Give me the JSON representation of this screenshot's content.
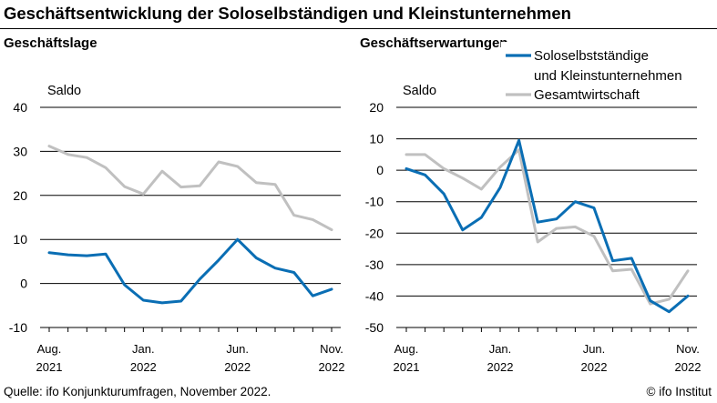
{
  "title": "Geschäftsentwicklung der Soloselbständigen und Kleinstunternehmen",
  "footer": {
    "source": "Quelle: ifo Konjunkturumfragen, November 2022.",
    "copyright": "© ifo Institut"
  },
  "colors": {
    "solo": "#0a6eb4",
    "gesamt": "#c0c0c0",
    "grid": "#000000"
  },
  "chart_data": [
    {
      "type": "line",
      "title": "Geschäftslage",
      "ylabel": "Saldo",
      "ylim": [
        -10,
        40
      ],
      "yticks": [
        -10,
        0,
        10,
        20,
        30,
        40
      ],
      "x": [
        "Aug. 2021",
        "Sep. 2021",
        "Okt. 2021",
        "Nov. 2021",
        "Dez. 2021",
        "Jan. 2022",
        "Feb. 2022",
        "Mär. 2022",
        "Apr. 2022",
        "Mai 2022",
        "Jun. 2022",
        "Jul. 2022",
        "Aug. 2022",
        "Sep. 2022",
        "Okt. 2022",
        "Nov. 2022"
      ],
      "xtick_labels": [
        {
          "index": 0,
          "line1": "Aug.",
          "line2": "2021"
        },
        {
          "index": 5,
          "line1": "Jan.",
          "line2": "2022"
        },
        {
          "index": 10,
          "line1": "Jun.",
          "line2": "2022"
        },
        {
          "index": 15,
          "line1": "Nov.",
          "line2": "2022"
        }
      ],
      "series": [
        {
          "key": "solo",
          "values": [
            7.0,
            6.5,
            6.3,
            6.7,
            -0.3,
            -3.8,
            -4.4,
            -4.0,
            1.0,
            5.3,
            10.0,
            5.8,
            3.5,
            2.5,
            -2.8,
            -1.3
          ]
        },
        {
          "key": "gesamt",
          "values": [
            31.2,
            29.3,
            28.6,
            26.3,
            22.0,
            20.3,
            25.5,
            21.9,
            22.2,
            27.6,
            26.6,
            22.9,
            22.5,
            15.5,
            14.5,
            12.2
          ]
        }
      ]
    },
    {
      "type": "line",
      "title": "Geschäftserwartungen",
      "ylabel": "Saldo",
      "ylim": [
        -50,
        20
      ],
      "yticks": [
        -50,
        -40,
        -30,
        -20,
        -10,
        0,
        10,
        20
      ],
      "x": [
        "Aug. 2021",
        "Sep. 2021",
        "Okt. 2021",
        "Nov. 2021",
        "Dez. 2021",
        "Jan. 2022",
        "Feb. 2022",
        "Mär. 2022",
        "Apr. 2022",
        "Mai 2022",
        "Jun. 2022",
        "Jul. 2022",
        "Aug. 2022",
        "Sep. 2022",
        "Okt. 2022",
        "Nov. 2022"
      ],
      "xtick_labels": [
        {
          "index": 0,
          "line1": "Aug.",
          "line2": "2021"
        },
        {
          "index": 5,
          "line1": "Jan.",
          "line2": "2022"
        },
        {
          "index": 10,
          "line1": "Jun.",
          "line2": "2022"
        },
        {
          "index": 15,
          "line1": "Nov.",
          "line2": "2022"
        }
      ],
      "series": [
        {
          "key": "solo",
          "name": "Soloselbstständige und Kleinstunternehmen",
          "name_lines": [
            "Soloselbstständige",
            "und Kleinstunternehmen"
          ],
          "values": [
            0.5,
            -1.5,
            -7.5,
            -19.0,
            -15.0,
            -5.5,
            9.5,
            -16.5,
            -15.5,
            -10.0,
            -12.0,
            -28.8,
            -28.0,
            -41.5,
            -45.0,
            -40.0
          ]
        },
        {
          "key": "gesamt",
          "name": "Gesamtwirtschaft",
          "name_lines": [
            "Gesamtwirtschaft"
          ],
          "values": [
            5.0,
            5.0,
            0.5,
            -2.5,
            -6.0,
            1.0,
            6.5,
            -22.8,
            -18.5,
            -18.0,
            -21.0,
            -32.0,
            -31.5,
            -42.5,
            -41.0,
            -32.0
          ]
        }
      ]
    }
  ]
}
